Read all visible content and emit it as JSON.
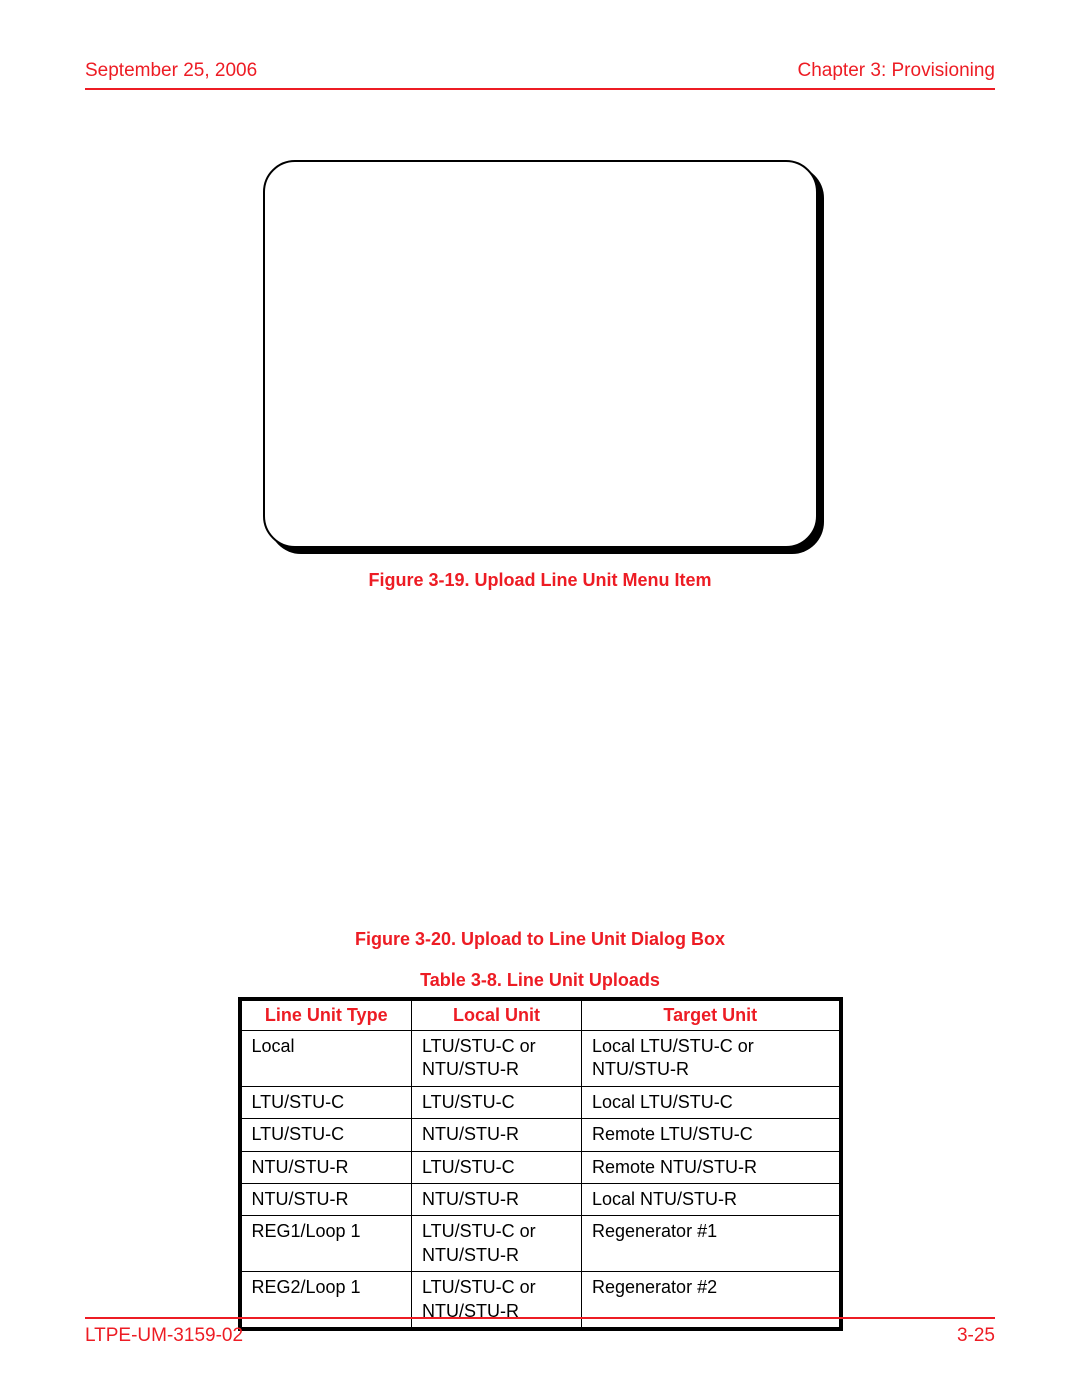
{
  "header": {
    "date": "September 25, 2006",
    "chapter": "Chapter 3: Provisioning"
  },
  "footer": {
    "docnum": "LTPE-UM-3159-02",
    "pagenum": "3-25"
  },
  "figure1_caption": "Figure 3-19. Upload Line Unit Menu Item",
  "figure2_caption": "Figure 3-20. Upload to Line Unit Dialog Box",
  "table_caption": "Table 3-8. Line Unit Uploads",
  "table": {
    "headers": [
      "Line Unit Type",
      "Local Unit",
      "Target Unit"
    ],
    "rows": [
      [
        "Local",
        "LTU/STU-C or NTU/STU-R",
        "Local LTU/STU-C or NTU/STU-R"
      ],
      [
        "LTU/STU-C",
        "LTU/STU-C",
        "Local LTU/STU-C"
      ],
      [
        "LTU/STU-C",
        "NTU/STU-R",
        "Remote LTU/STU-C"
      ],
      [
        "NTU/STU-R",
        "LTU/STU-C",
        "Remote NTU/STU-R"
      ],
      [
        "NTU/STU-R",
        "NTU/STU-R",
        "Local NTU/STU-R"
      ],
      [
        "REG1/Loop 1",
        "LTU/STU-C or NTU/STU-R",
        "Regenerator #1"
      ],
      [
        "REG2/Loop 1",
        "LTU/STU-C or NTU/STU-R",
        "Regenerator #2"
      ]
    ]
  },
  "colors": {
    "accent": "#ed1c24",
    "text": "#000000",
    "background": "#ffffff"
  }
}
